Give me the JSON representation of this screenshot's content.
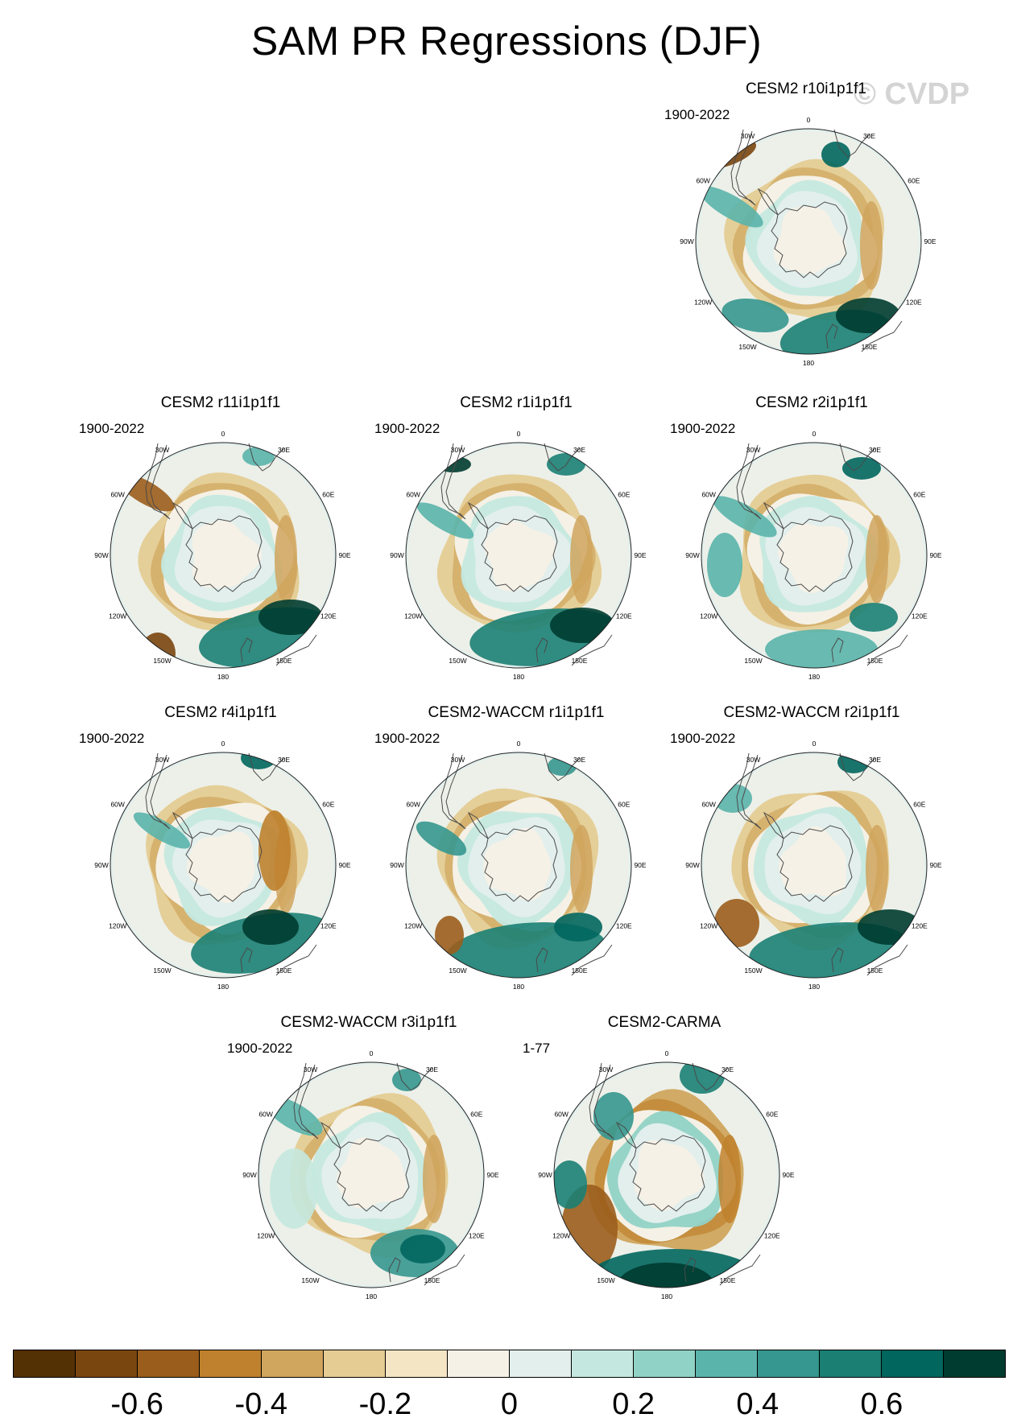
{
  "title": "SAM PR Regressions (DJF)",
  "watermark": "© CVDP",
  "panels": [
    {
      "title": "CESM2 r10i1p1f1",
      "period": "1900-2022",
      "pattern": "a"
    },
    {
      "title": "CESM2 r11i1p1f1",
      "period": "1900-2022",
      "pattern": "b"
    },
    {
      "title": "CESM2 r1i1p1f1",
      "period": "1900-2022",
      "pattern": "c"
    },
    {
      "title": "CESM2 r2i1p1f1",
      "period": "1900-2022",
      "pattern": "d"
    },
    {
      "title": "CESM2 r4i1p1f1",
      "period": "1900-2022",
      "pattern": "e"
    },
    {
      "title": "CESM2-WACCM r1i1p1f1",
      "period": "1900-2022",
      "pattern": "f"
    },
    {
      "title": "CESM2-WACCM r2i1p1f1",
      "period": "1900-2022",
      "pattern": "g"
    },
    {
      "title": "CESM2-WACCM r3i1p1f1",
      "period": "1900-2022",
      "pattern": "h"
    },
    {
      "title": "CESM2-CARMA",
      "period": "1-77",
      "pattern": "i"
    }
  ],
  "lon_labels": [
    "0",
    "30E",
    "60E",
    "90E",
    "120E",
    "150E",
    "180",
    "150W",
    "120W",
    "90W",
    "60W",
    "30W"
  ],
  "colorbar": {
    "colors": [
      "#543005",
      "#7a4610",
      "#9b5d1c",
      "#bf812d",
      "#d0a55e",
      "#e5cc93",
      "#f4e6c4",
      "#f5f1e6",
      "#e2efed",
      "#c4e8df",
      "#91d2c6",
      "#5ab4ab",
      "#35978f",
      "#1b7f74",
      "#01665e",
      "#003c30"
    ],
    "tick_labels": [
      "-0.6",
      "-0.4",
      "-0.2",
      "0",
      "0.2",
      "0.4",
      "0.6"
    ]
  }
}
